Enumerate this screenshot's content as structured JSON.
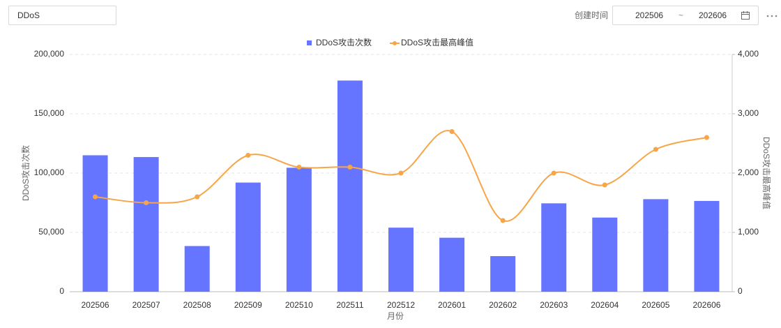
{
  "filter": {
    "search": "DDoS",
    "date_label": "创建时间",
    "start": "202506",
    "separator": "~",
    "end": "202606"
  },
  "chart_data": {
    "type": "bar",
    "x_label": "月份",
    "y_label": "DDoS攻击次数",
    "y2_label": "DDoS攻击最高峰值",
    "categories": [
      "202506",
      "202507",
      "202508",
      "202509",
      "202510",
      "202511",
      "202512",
      "202601",
      "202602",
      "202603",
      "202604",
      "202605",
      "202606"
    ],
    "series": [
      {
        "name": "DDoS攻击次数",
        "type": "bar",
        "color": "#6675ff",
        "values": [
          115000,
          113500,
          38500,
          92000,
          104500,
          178000,
          54000,
          45500,
          30000,
          74500,
          62500,
          78000,
          76500
        ]
      },
      {
        "name": "DDoS攻击最高峰值",
        "type": "line",
        "axis": "y2",
        "color": "#f7a547",
        "smooth": true,
        "values": [
          1600,
          1500,
          1600,
          2300,
          2100,
          2100,
          2000,
          2700,
          1200,
          2000,
          1800,
          2400,
          2600
        ]
      }
    ],
    "ylim": [
      0,
      200000
    ],
    "yticks": [
      0,
      {
        "value": 50000,
        "label": "50,000"
      },
      {
        "value": 100000,
        "label": "100,000"
      },
      {
        "value": 150000,
        "label": "150,000"
      },
      {
        "value": 200000,
        "label": "200,000"
      }
    ],
    "y2lim": [
      0,
      4000
    ],
    "y2ticks": [
      0,
      {
        "value": 1000,
        "label": "1,000"
      },
      {
        "value": 2000,
        "label": "2,000"
      },
      {
        "value": 3000,
        "label": "3,000"
      },
      {
        "value": 4000,
        "label": "4,000"
      }
    ],
    "grid": true,
    "legend": "top"
  }
}
